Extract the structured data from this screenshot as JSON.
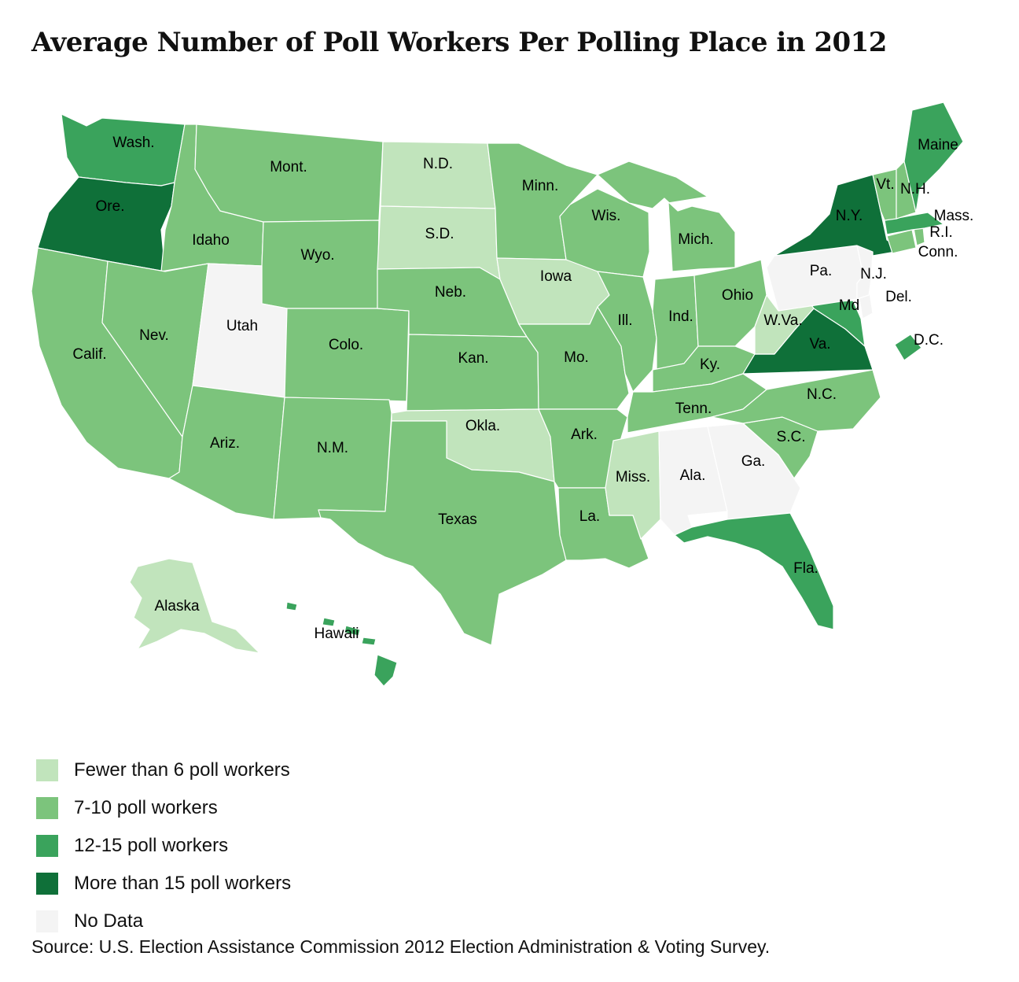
{
  "title": "Average Number of Poll Workers Per Polling Place in 2012",
  "source": "Source: U.S. Election Assistance Commission 2012 Election Administration & Voting Survey.",
  "colors": {
    "lt6": "#c1e4bc",
    "7to10": "#7cc47c",
    "12to15": "#3aa35c",
    "gt15": "#0f7039",
    "nodata": "#f4f4f4"
  },
  "legend": [
    {
      "key": "lt6",
      "label": "Fewer than 6 poll workers"
    },
    {
      "key": "7to10",
      "label": "7-10 poll workers"
    },
    {
      "key": "12to15",
      "label": "12-15 poll workers"
    },
    {
      "key": "gt15",
      "label": "More than 15 poll workers"
    },
    {
      "key": "nodata",
      "label": "No Data"
    }
  ],
  "states": [
    {
      "id": "WA",
      "label": "Wash.",
      "cat": "12to15"
    },
    {
      "id": "OR",
      "label": "Ore.",
      "cat": "gt15"
    },
    {
      "id": "CA",
      "label": "Calif.",
      "cat": "7to10"
    },
    {
      "id": "ID",
      "label": "Idaho",
      "cat": "7to10"
    },
    {
      "id": "NV",
      "label": "Nev.",
      "cat": "7to10"
    },
    {
      "id": "MT",
      "label": "Mont.",
      "cat": "7to10"
    },
    {
      "id": "WY",
      "label": "Wyo.",
      "cat": "7to10"
    },
    {
      "id": "UT",
      "label": "Utah",
      "cat": "nodata"
    },
    {
      "id": "AZ",
      "label": "Ariz.",
      "cat": "7to10"
    },
    {
      "id": "CO",
      "label": "Colo.",
      "cat": "7to10"
    },
    {
      "id": "NM",
      "label": "N.M.",
      "cat": "7to10"
    },
    {
      "id": "ND",
      "label": "N.D.",
      "cat": "lt6"
    },
    {
      "id": "SD",
      "label": "S.D.",
      "cat": "lt6"
    },
    {
      "id": "NE",
      "label": "Neb.",
      "cat": "7to10"
    },
    {
      "id": "KS",
      "label": "Kan.",
      "cat": "7to10"
    },
    {
      "id": "OK",
      "label": "Okla.",
      "cat": "lt6"
    },
    {
      "id": "TX",
      "label": "Texas",
      "cat": "7to10"
    },
    {
      "id": "MN",
      "label": "Minn.",
      "cat": "7to10"
    },
    {
      "id": "IA",
      "label": "Iowa",
      "cat": "lt6"
    },
    {
      "id": "MO",
      "label": "Mo.",
      "cat": "7to10"
    },
    {
      "id": "AR",
      "label": "Ark.",
      "cat": "7to10"
    },
    {
      "id": "LA",
      "label": "La.",
      "cat": "7to10"
    },
    {
      "id": "WI",
      "label": "Wis.",
      "cat": "7to10"
    },
    {
      "id": "IL",
      "label": "Ill.",
      "cat": "7to10"
    },
    {
      "id": "MI",
      "label": "Mich.",
      "cat": "7to10"
    },
    {
      "id": "IN",
      "label": "Ind.",
      "cat": "7to10"
    },
    {
      "id": "OH",
      "label": "Ohio",
      "cat": "7to10"
    },
    {
      "id": "KY",
      "label": "Ky.",
      "cat": "7to10"
    },
    {
      "id": "TN",
      "label": "Tenn.",
      "cat": "7to10"
    },
    {
      "id": "MS",
      "label": "Miss.",
      "cat": "lt6"
    },
    {
      "id": "AL",
      "label": "Ala.",
      "cat": "nodata"
    },
    {
      "id": "GA",
      "label": "Ga.",
      "cat": "nodata"
    },
    {
      "id": "FL",
      "label": "Fla.",
      "cat": "12to15"
    },
    {
      "id": "SC",
      "label": "S.C.",
      "cat": "7to10"
    },
    {
      "id": "NC",
      "label": "N.C.",
      "cat": "7to10"
    },
    {
      "id": "VA",
      "label": "Va.",
      "cat": "gt15"
    },
    {
      "id": "WV",
      "label": "W.Va.",
      "cat": "lt6"
    },
    {
      "id": "MD",
      "label": "Md",
      "cat": "12to15"
    },
    {
      "id": "DE",
      "label": "Del.",
      "cat": "nodata"
    },
    {
      "id": "DC",
      "label": "D.C.",
      "cat": "12to15"
    },
    {
      "id": "PA",
      "label": "Pa.",
      "cat": "nodata"
    },
    {
      "id": "NJ",
      "label": "N.J.",
      "cat": "nodata"
    },
    {
      "id": "NY",
      "label": "N.Y.",
      "cat": "gt15"
    },
    {
      "id": "CT",
      "label": "Conn.",
      "cat": "7to10"
    },
    {
      "id": "RI",
      "label": "R.I.",
      "cat": "7to10"
    },
    {
      "id": "MA",
      "label": "Mass.",
      "cat": "12to15"
    },
    {
      "id": "VT",
      "label": "Vt.",
      "cat": "7to10"
    },
    {
      "id": "NH",
      "label": "N.H.",
      "cat": "7to10"
    },
    {
      "id": "ME",
      "label": "Maine",
      "cat": "12to15"
    },
    {
      "id": "AK",
      "label": "Alaska",
      "cat": "lt6"
    },
    {
      "id": "HI",
      "label": "Hawaii",
      "cat": "12to15"
    }
  ]
}
